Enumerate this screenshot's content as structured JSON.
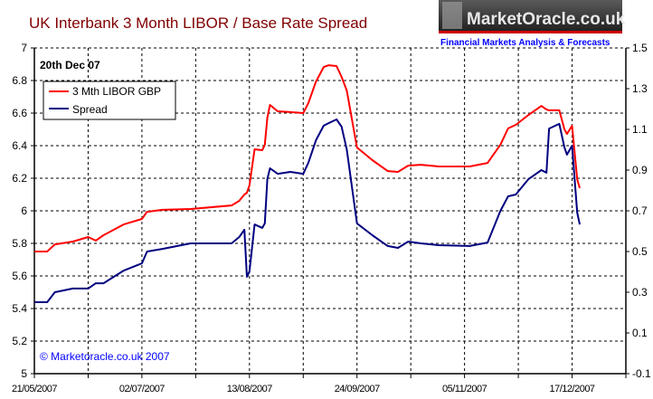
{
  "logo": {
    "name": "MarketOracle.co.uk",
    "tagline": "Financial Markets Analysis & Forecasts"
  },
  "colors": {
    "libor": "#ff0000",
    "spread": "#000080",
    "title": "#800000",
    "tagline": "#0000ff",
    "copyright": "#0000ff"
  },
  "chart_data": {
    "type": "line",
    "title": "UK Interbank 3 Month LIBOR / Base Rate Spread",
    "annotation": "20th Dec 07",
    "copyright": "© Marketoracle.co.uk 2007",
    "legend_placement": "top-left",
    "grid": true,
    "xlim": [
      "2007-05-21",
      "2008-01-07"
    ],
    "x_ticks": [
      "21/05/2007",
      "02/07/2007",
      "13/08/2007",
      "24/09/2007",
      "05/11/2007",
      "17/12/2007"
    ],
    "x_minor_interval_days": 21,
    "y_left": {
      "ylim": [
        5,
        7
      ],
      "ticks": [
        "5",
        "5.2",
        "5.4",
        "5.6",
        "5.8",
        "6",
        "6.2",
        "6.4",
        "6.6",
        "6.8",
        "7"
      ]
    },
    "y_right": {
      "ylim": [
        -0.1,
        1.5
      ],
      "ticks": [
        "-0.1",
        "0.1",
        "0.3",
        "0.5",
        "0.7",
        "0.9",
        "1.1",
        "1.3",
        "1.5"
      ]
    },
    "x": [
      "2007-05-21",
      "2007-05-26",
      "2007-05-29",
      "2007-06-05",
      "2007-06-11",
      "2007-06-14",
      "2007-06-17",
      "2007-06-25",
      "2007-07-02",
      "2007-07-04",
      "2007-07-10",
      "2007-07-21",
      "2007-08-06",
      "2007-08-09",
      "2007-08-11",
      "2007-08-12",
      "2007-08-13",
      "2007-08-15",
      "2007-08-18",
      "2007-08-19",
      "2007-08-20",
      "2007-08-21",
      "2007-08-24",
      "2007-08-29",
      "2007-09-03",
      "2007-09-05",
      "2007-09-08",
      "2007-09-11",
      "2007-09-13",
      "2007-09-16",
      "2007-09-18",
      "2007-09-20",
      "2007-09-24",
      "2007-09-30",
      "2007-10-06",
      "2007-10-10",
      "2007-10-14",
      "2007-10-19",
      "2007-10-26",
      "2007-11-07",
      "2007-11-14",
      "2007-11-19",
      "2007-11-22",
      "2007-11-25",
      "2007-11-30",
      "2007-12-05",
      "2007-12-07",
      "2007-12-08",
      "2007-12-12",
      "2007-12-14",
      "2007-12-15",
      "2007-12-17",
      "2007-12-19",
      "2007-12-20"
    ],
    "series": [
      {
        "name": "3 Mth LIBOR GBP",
        "axis": "left",
        "color": "#ff0000",
        "values": [
          5.75,
          5.75,
          5.794,
          5.811,
          5.839,
          5.817,
          5.85,
          5.917,
          5.95,
          5.994,
          6.006,
          6.011,
          6.033,
          6.061,
          6.1,
          6.111,
          6.156,
          6.378,
          6.372,
          6.406,
          6.572,
          6.65,
          6.611,
          6.606,
          6.6,
          6.661,
          6.794,
          6.883,
          6.894,
          6.889,
          6.822,
          6.739,
          6.389,
          6.311,
          6.244,
          6.239,
          6.278,
          6.283,
          6.272,
          6.272,
          6.294,
          6.406,
          6.506,
          6.528,
          6.589,
          6.644,
          6.622,
          6.617,
          6.617,
          6.5,
          6.472,
          6.522,
          6.194,
          6.139
        ]
      },
      {
        "name": "Spread",
        "axis": "right",
        "color": "#000080",
        "values": [
          0.251,
          0.251,
          0.3,
          0.318,
          0.318,
          0.344,
          0.344,
          0.407,
          0.442,
          0.5,
          0.513,
          0.54,
          0.54,
          0.571,
          0.607,
          0.376,
          0.402,
          0.633,
          0.616,
          0.638,
          0.856,
          0.909,
          0.882,
          0.891,
          0.882,
          0.936,
          1.047,
          1.118,
          1.131,
          1.149,
          1.113,
          1.002,
          0.638,
          0.58,
          0.527,
          0.518,
          0.549,
          0.54,
          0.531,
          0.527,
          0.544,
          0.7,
          0.771,
          0.78,
          0.856,
          0.9,
          0.887,
          1.104,
          1.127,
          1.011,
          0.976,
          1.02,
          0.691,
          0.633
        ]
      }
    ]
  }
}
